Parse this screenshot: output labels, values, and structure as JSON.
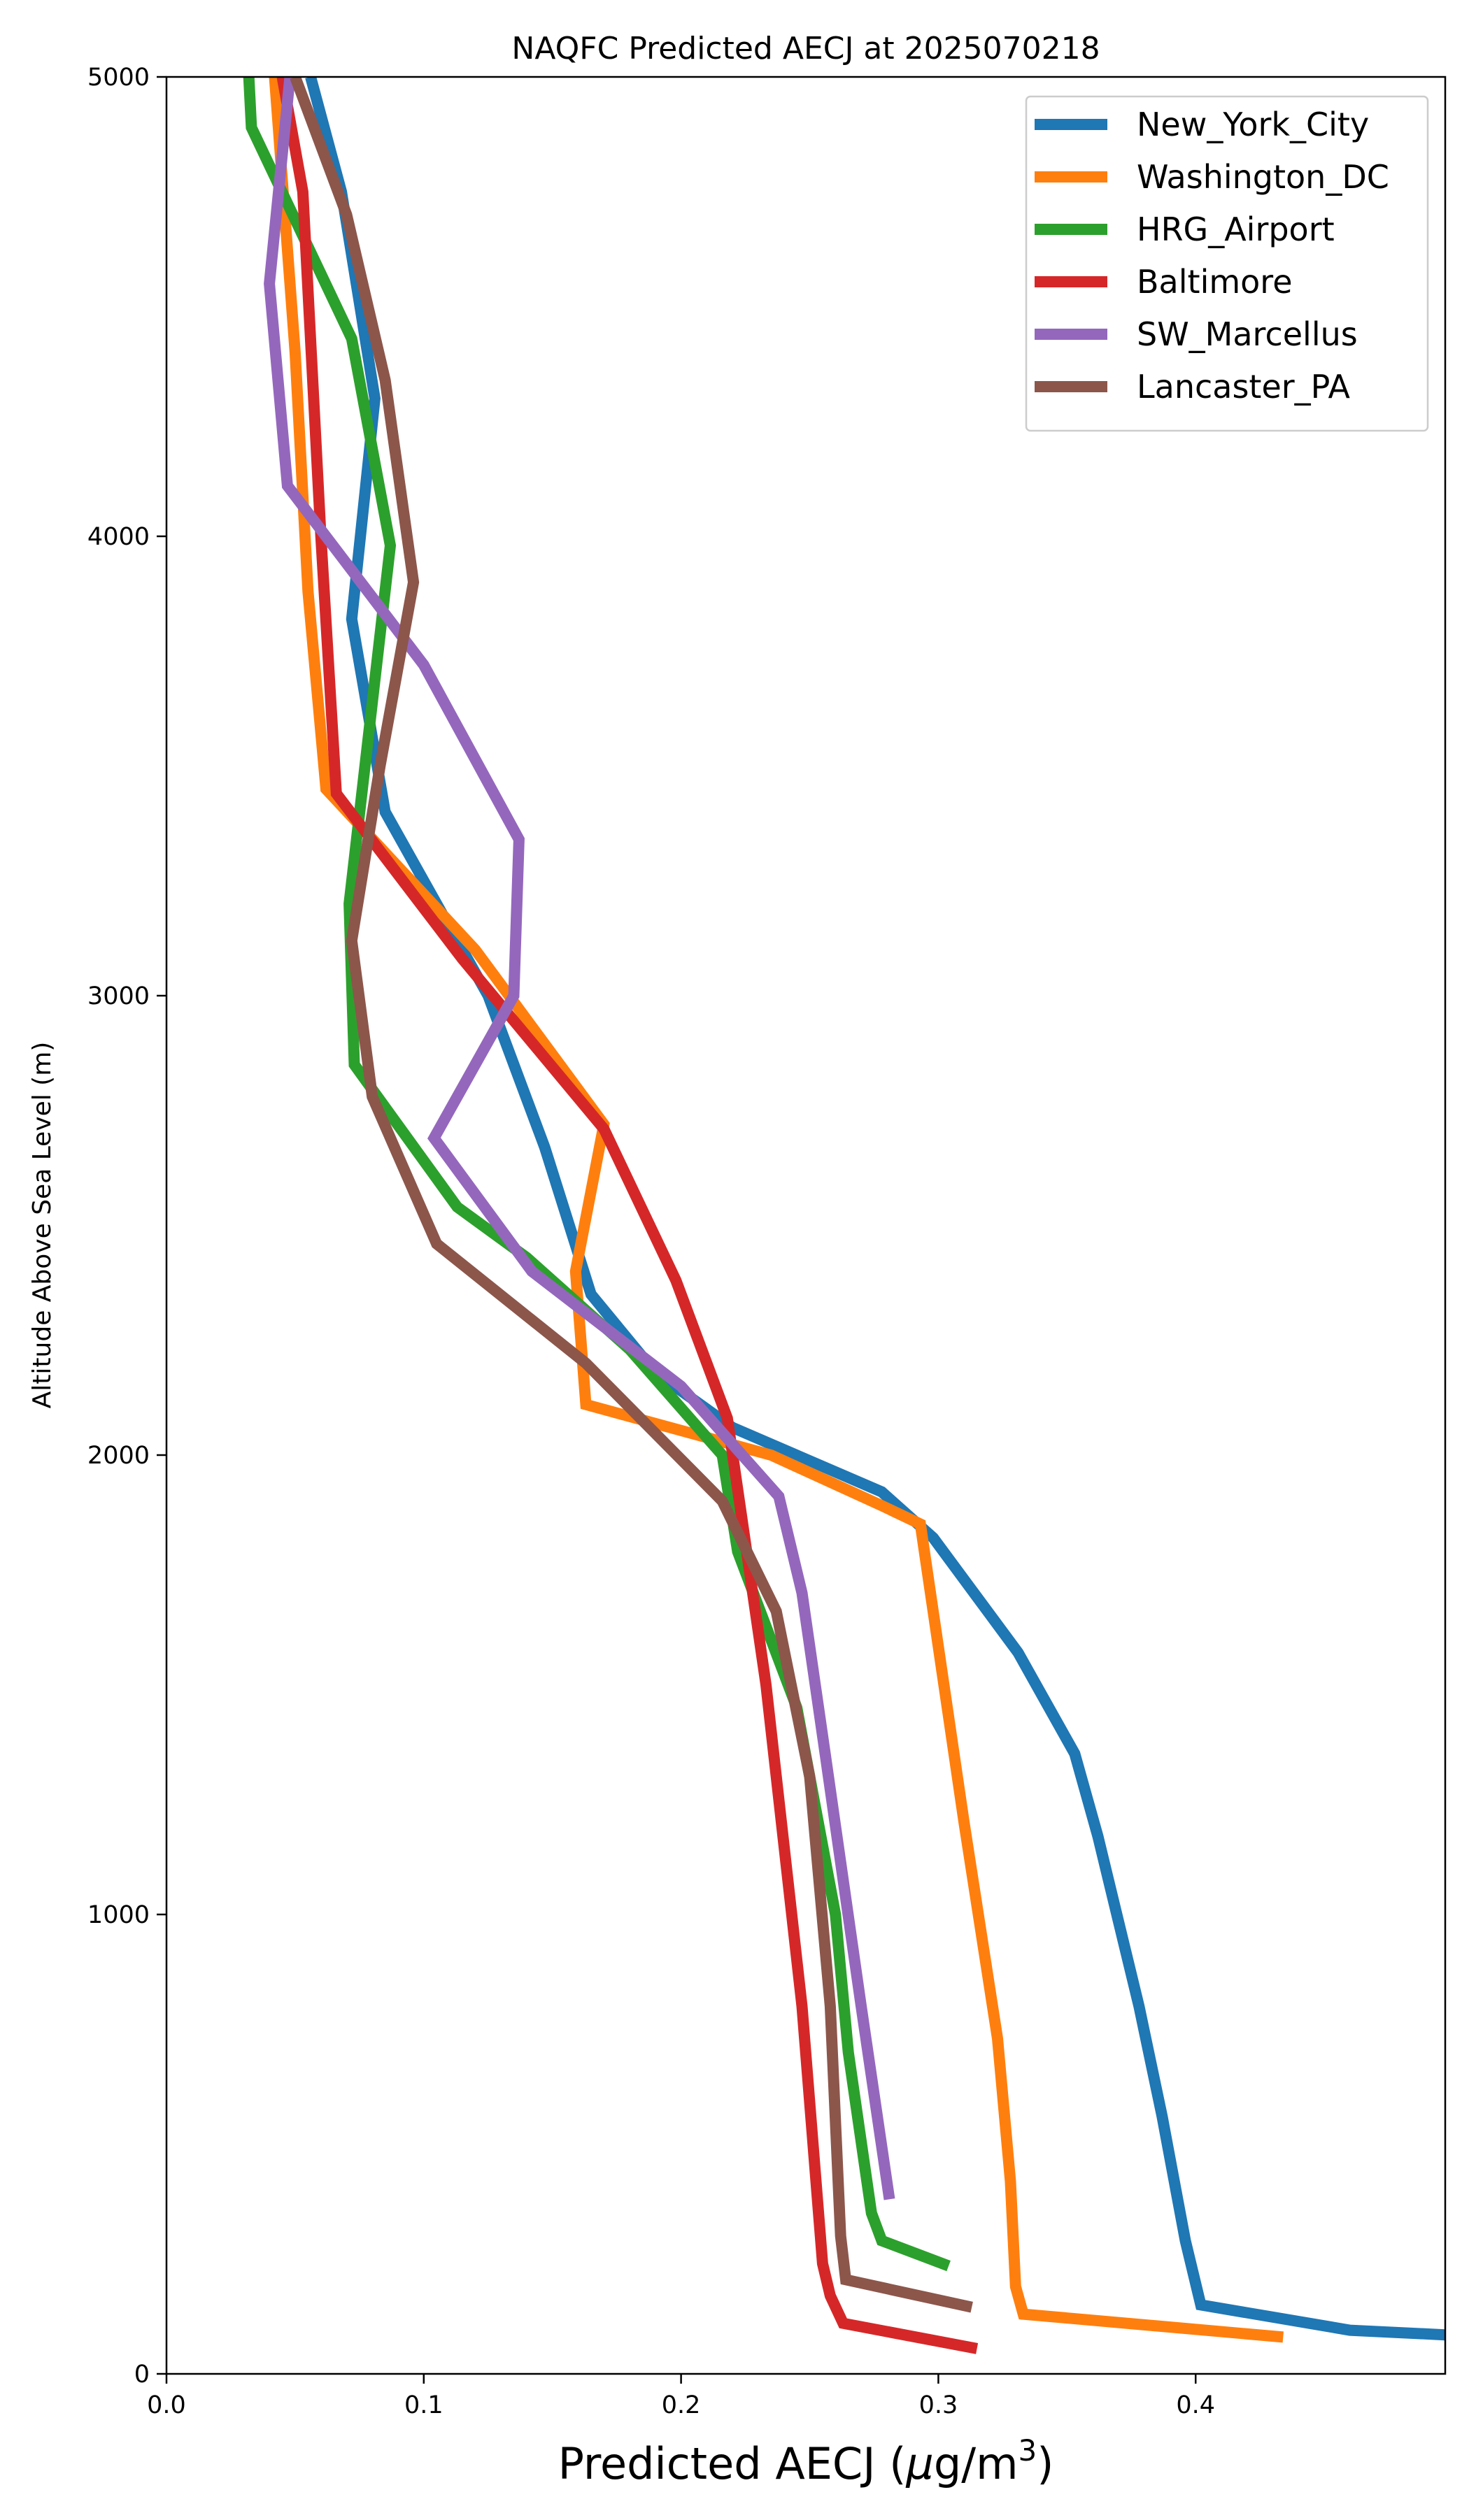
{
  "chart_data": {
    "type": "line",
    "title": "NAQFC Predicted AECJ at 2025070218",
    "xlabel_main": "Predicted AECJ (",
    "xlabel_mu": "μ",
    "xlabel_unit": "g/m",
    "xlabel_sup": "3",
    "xlabel_close": ")",
    "ylabel": "Altitude Above Sea Level (m)",
    "xlim": [
      0.0,
      0.497
    ],
    "ylim": [
      0,
      5000
    ],
    "xticks": [
      {
        "value": 0.0,
        "label": "0.0"
      },
      {
        "value": 0.1,
        "label": "0.1"
      },
      {
        "value": 0.2,
        "label": "0.2"
      },
      {
        "value": 0.3,
        "label": "0.3"
      },
      {
        "value": 0.4,
        "label": "0.4"
      }
    ],
    "yticks": [
      {
        "value": 0,
        "label": "0"
      },
      {
        "value": 1000,
        "label": "1000"
      },
      {
        "value": 2000,
        "label": "2000"
      },
      {
        "value": 3000,
        "label": "3000"
      },
      {
        "value": 4000,
        "label": "4000"
      },
      {
        "value": 5000,
        "label": "5000"
      }
    ],
    "grid": false,
    "legend_position": "top-right",
    "series": [
      {
        "name": "New_York_City",
        "color": "#1f77b4",
        "points": [
          [
            0.497,
            85
          ],
          [
            0.46,
            95
          ],
          [
            0.402,
            150
          ],
          [
            0.396,
            290
          ],
          [
            0.387,
            560
          ],
          [
            0.378,
            800
          ],
          [
            0.362,
            1170
          ],
          [
            0.353,
            1350
          ],
          [
            0.331,
            1570
          ],
          [
            0.298,
            1820
          ],
          [
            0.278,
            1920
          ],
          [
            0.22,
            2060
          ],
          [
            0.19,
            2180
          ],
          [
            0.165,
            2350
          ],
          [
            0.147,
            2670
          ],
          [
            0.125,
            3000
          ],
          [
            0.085,
            3400
          ],
          [
            0.072,
            3820
          ],
          [
            0.081,
            4300
          ],
          [
            0.068,
            4750
          ],
          [
            0.056,
            5000
          ]
        ]
      },
      {
        "name": "Washington_DC",
        "color": "#ff7f0e",
        "points": [
          [
            0.434,
            80
          ],
          [
            0.333,
            130
          ],
          [
            0.33,
            190
          ],
          [
            0.328,
            420
          ],
          [
            0.323,
            730
          ],
          [
            0.31,
            1200
          ],
          [
            0.293,
            1850
          ],
          [
            0.278,
            1890
          ],
          [
            0.235,
            2000
          ],
          [
            0.163,
            2110
          ],
          [
            0.159,
            2400
          ],
          [
            0.17,
            2720
          ],
          [
            0.12,
            3100
          ],
          [
            0.062,
            3450
          ],
          [
            0.055,
            3880
          ],
          [
            0.05,
            4400
          ],
          [
            0.042,
            5000
          ]
        ]
      },
      {
        "name": "HRG_Airport",
        "color": "#2ca02c",
        "points": [
          [
            0.304,
            235
          ],
          [
            0.278,
            290
          ],
          [
            0.274,
            350
          ],
          [
            0.265,
            700
          ],
          [
            0.26,
            1000
          ],
          [
            0.245,
            1450
          ],
          [
            0.222,
            1790
          ],
          [
            0.216,
            2000
          ],
          [
            0.18,
            2230
          ],
          [
            0.14,
            2430
          ],
          [
            0.113,
            2540
          ],
          [
            0.073,
            2850
          ],
          [
            0.071,
            3200
          ],
          [
            0.087,
            3980
          ],
          [
            0.072,
            4430
          ],
          [
            0.033,
            4890
          ],
          [
            0.032,
            5000
          ]
        ]
      },
      {
        "name": "Baltimore",
        "color": "#d62728",
        "points": [
          [
            0.315,
            55
          ],
          [
            0.263,
            110
          ],
          [
            0.258,
            170
          ],
          [
            0.255,
            240
          ],
          [
            0.247,
            800
          ],
          [
            0.233,
            1500
          ],
          [
            0.218,
            2080
          ],
          [
            0.198,
            2380
          ],
          [
            0.17,
            2710
          ],
          [
            0.115,
            3080
          ],
          [
            0.066,
            3440
          ],
          [
            0.06,
            4000
          ],
          [
            0.053,
            4750
          ],
          [
            0.045,
            5000
          ]
        ]
      },
      {
        "name": "SW_Marcellus",
        "color": "#9467bd",
        "points": [
          [
            0.281,
            380
          ],
          [
            0.27,
            800
          ],
          [
            0.256,
            1350
          ],
          [
            0.247,
            1700
          ],
          [
            0.238,
            1910
          ],
          [
            0.2,
            2150
          ],
          [
            0.142,
            2400
          ],
          [
            0.104,
            2690
          ],
          [
            0.135,
            3000
          ],
          [
            0.137,
            3340
          ],
          [
            0.1,
            3720
          ],
          [
            0.047,
            4110
          ],
          [
            0.04,
            4550
          ],
          [
            0.048,
            5000
          ]
        ]
      },
      {
        "name": "Lancaster_PA",
        "color": "#8c564b",
        "points": [
          [
            0.313,
            145
          ],
          [
            0.264,
            205
          ],
          [
            0.262,
            300
          ],
          [
            0.258,
            800
          ],
          [
            0.25,
            1300
          ],
          [
            0.237,
            1660
          ],
          [
            0.216,
            1900
          ],
          [
            0.163,
            2200
          ],
          [
            0.105,
            2460
          ],
          [
            0.08,
            2780
          ],
          [
            0.072,
            3120
          ],
          [
            0.083,
            3500
          ],
          [
            0.096,
            3900
          ],
          [
            0.085,
            4340
          ],
          [
            0.07,
            4700
          ],
          [
            0.05,
            5000
          ]
        ]
      }
    ]
  }
}
